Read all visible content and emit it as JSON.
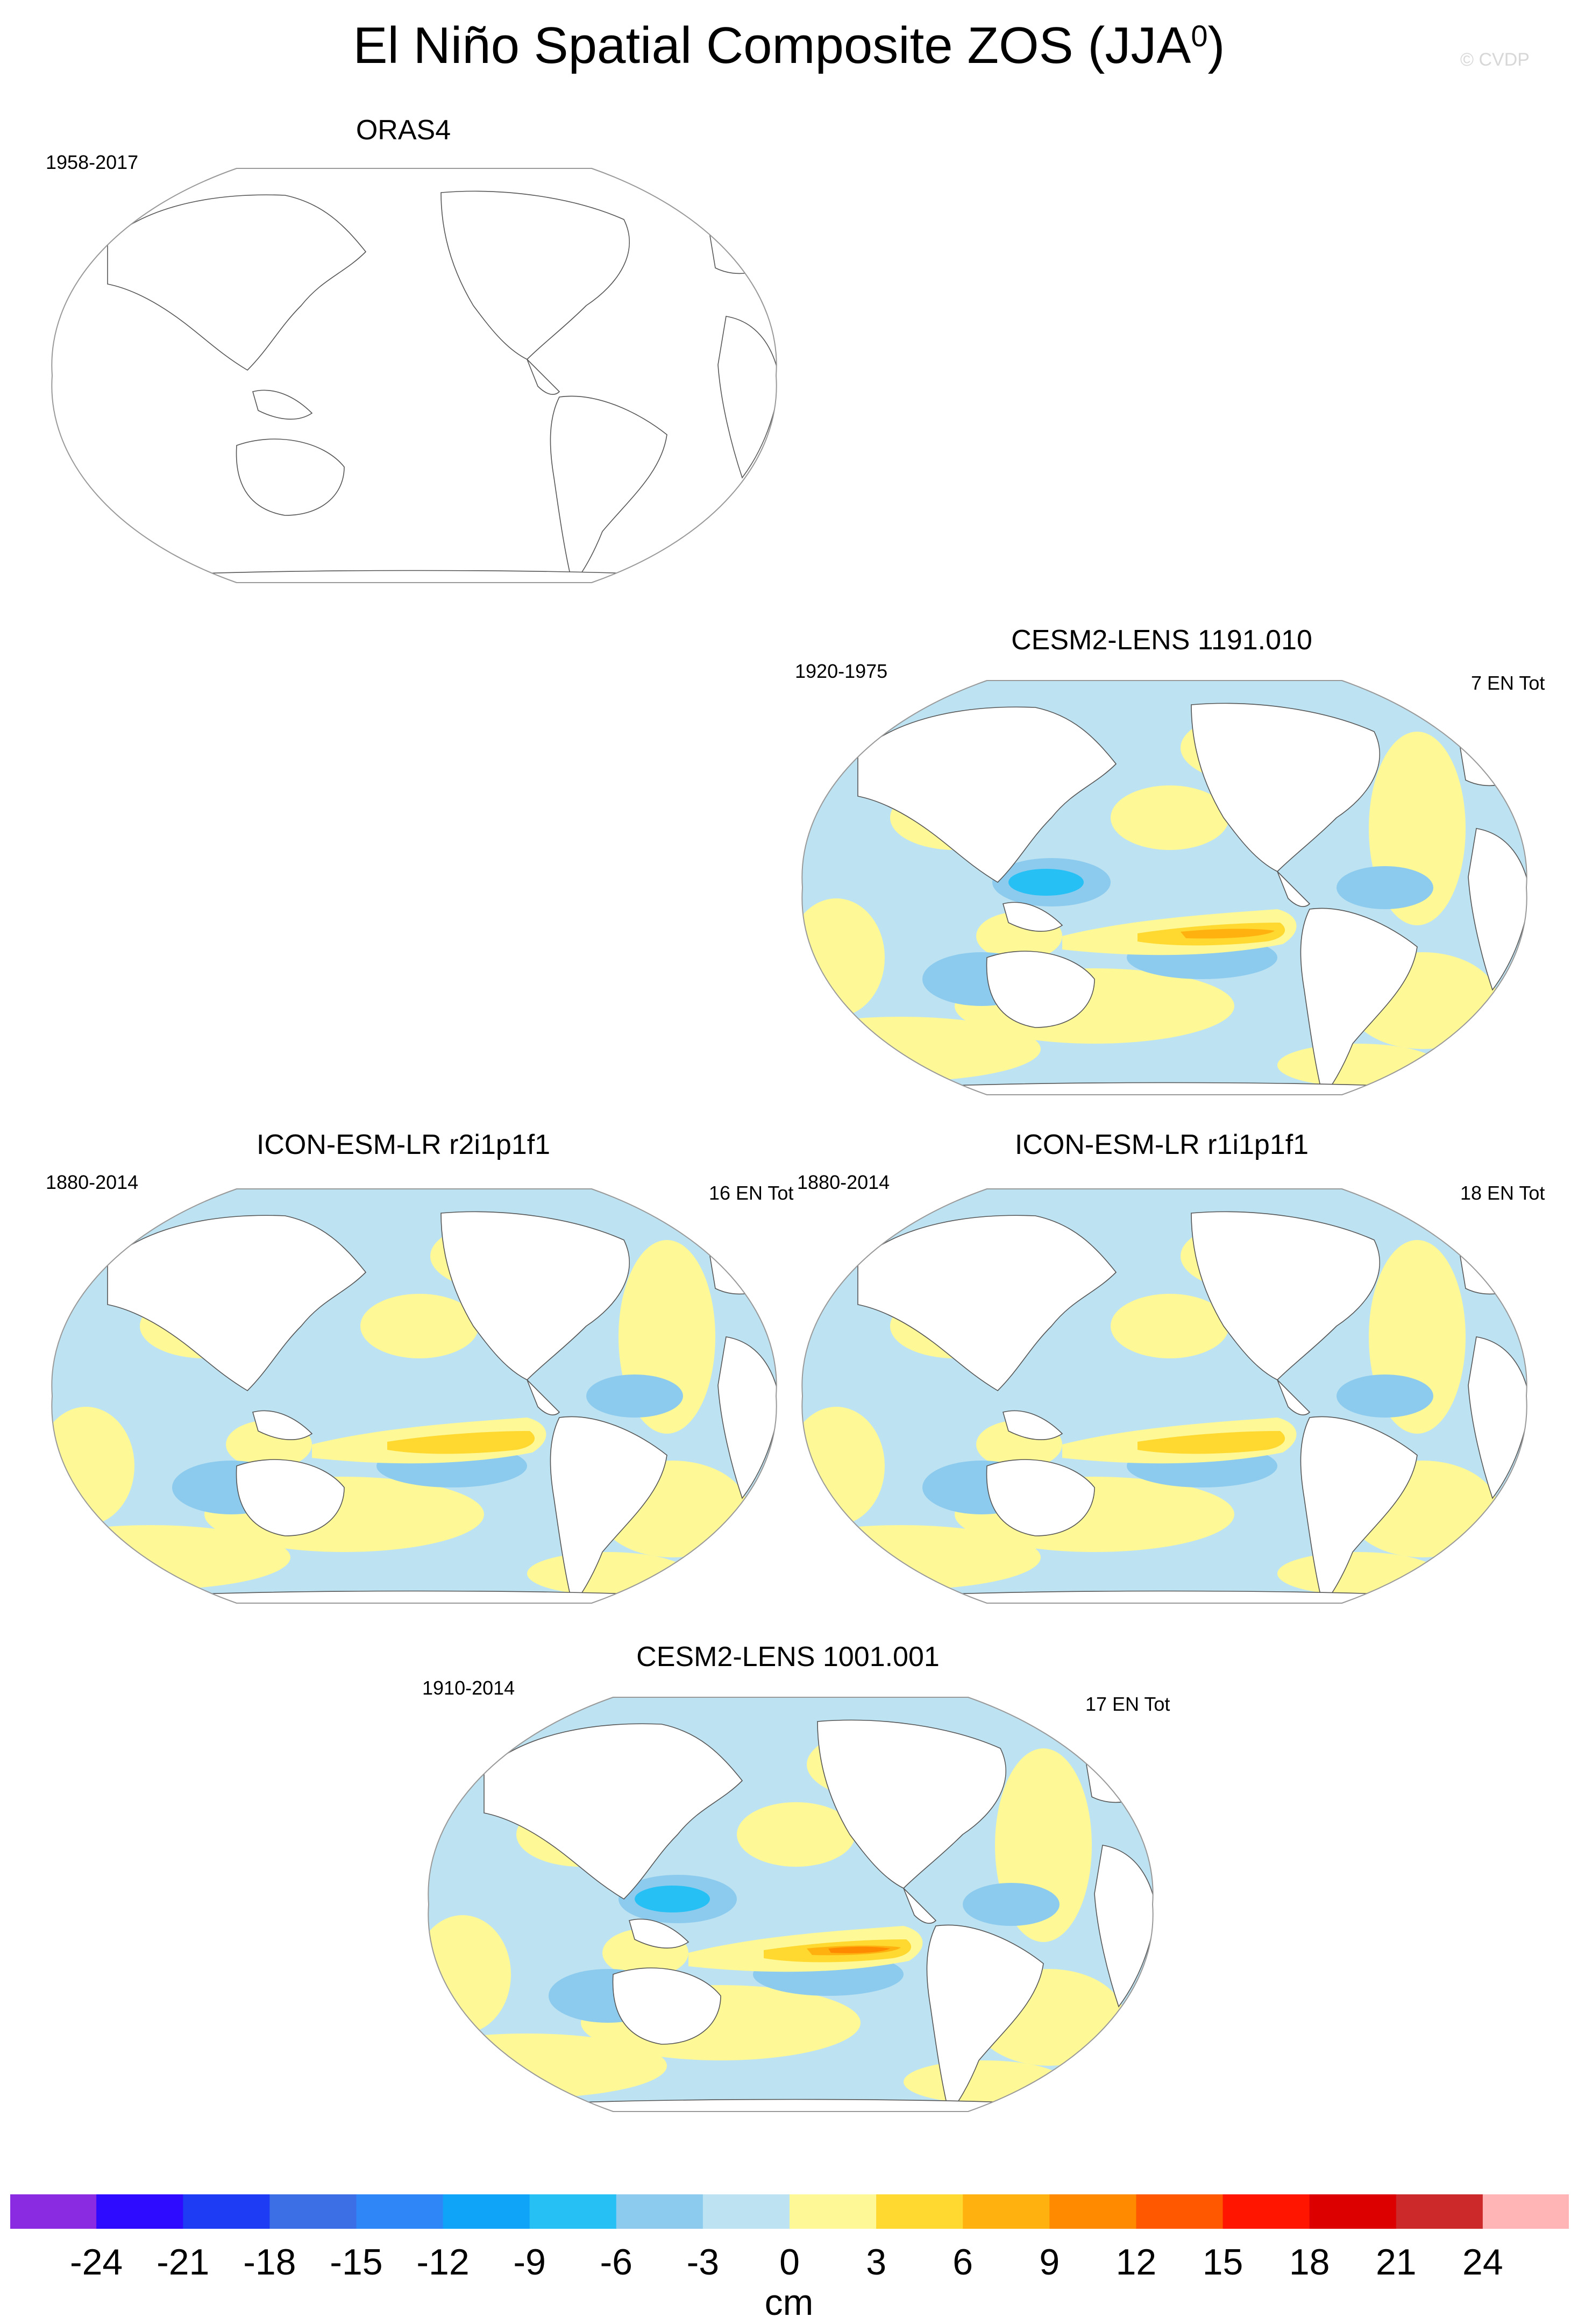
{
  "title": {
    "text": "El Niño Spatial Composite ZOS (JJA",
    "superscript": "0",
    "suffix": ")",
    "credit": "© CVDP"
  },
  "panels": [
    {
      "title": "ORAS4",
      "years": "1958-2017",
      "count": "",
      "filled": false
    },
    {
      "title": "CESM2-LENS 1191.010",
      "years": "1920-1975",
      "count": "7 EN Tot",
      "filled": true
    },
    {
      "title": "ICON-ESM-LR r2i1p1f1",
      "years": "1880-2014",
      "count": "16 EN Tot",
      "filled": true
    },
    {
      "title": "ICON-ESM-LR r1i1p1f1",
      "years": "1880-2014",
      "count": "18 EN Tot",
      "filled": true
    },
    {
      "title": "CESM2-LENS 1001.001",
      "years": "1910-2014",
      "count": "17 EN Tot",
      "filled": true
    }
  ],
  "colorbar": {
    "ticks": [
      "-24",
      "-21",
      "-18",
      "-15",
      "-12",
      "-9",
      "-6",
      "-3",
      "0",
      "3",
      "6",
      "9",
      "12",
      "15",
      "18",
      "21",
      "24"
    ],
    "colors": [
      "#8a2be2",
      "#2e0aff",
      "#1f3cf5",
      "#3c6ee6",
      "#2f86f6",
      "#10a4f8",
      "#26c0f5",
      "#8ccbee",
      "#bde2f2",
      "#fef897",
      "#ffd830",
      "#ffb20f",
      "#ff8a00",
      "#ff5800",
      "#ff1500",
      "#dd0000",
      "#cc2a2a",
      "#ffb5b5"
    ],
    "unit": "cm"
  },
  "map_palette": {
    "ocean_neutral": "#bde2f2",
    "positive_weak": "#fef897",
    "positive_mid": "#ffd830",
    "positive_strong": "#ffb20f",
    "positive_peak": "#ff8a00",
    "negative_mid": "#8ccbee",
    "negative_strong": "#26c0f5",
    "land": "#ffffff",
    "outline": "#555555"
  }
}
